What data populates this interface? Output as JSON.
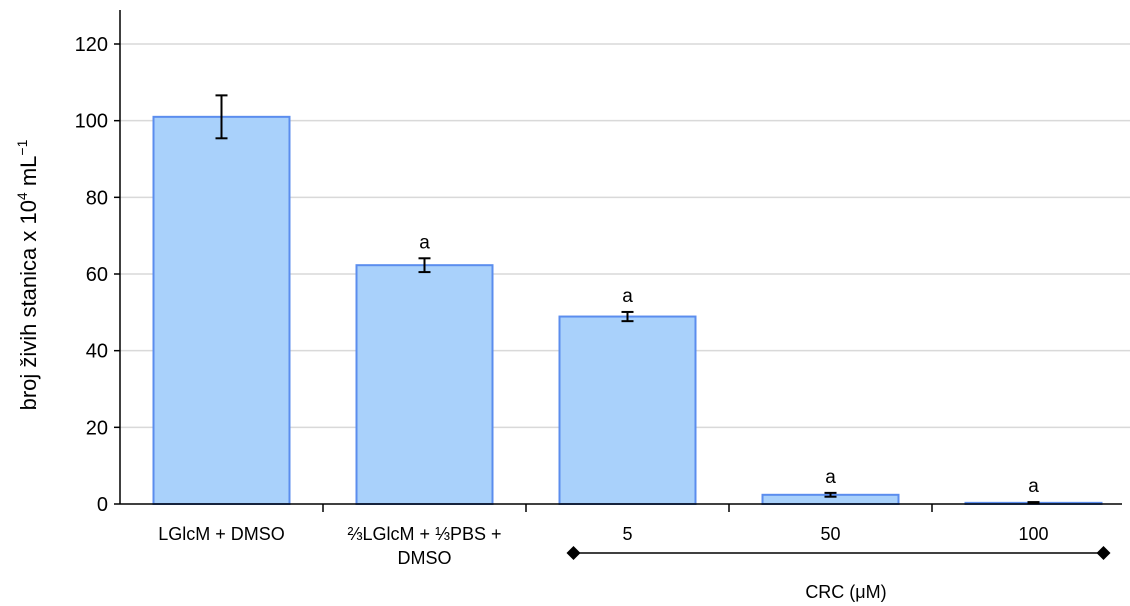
{
  "chart_data": {
    "type": "bar",
    "categories": [
      [
        "LGlcM + DMSO"
      ],
      [
        "⅔LGlcM + ⅓PBS +",
        "DMSO"
      ],
      [
        "5"
      ],
      [
        "50"
      ],
      [
        "100"
      ]
    ],
    "values": [
      101,
      62.3,
      48.9,
      2.4,
      0.3
    ],
    "errors": [
      5.6,
      1.8,
      1.2,
      0.5,
      0.2
    ],
    "significance": [
      "",
      "a",
      "a",
      "a",
      "a"
    ],
    "ylabel": "broj živih stanica x 10",
    "ylabel_exp": "4",
    "ylabel_unit": " mL",
    "ylabel_unit_exp": "−1",
    "ylim": [
      0,
      120
    ],
    "yticks": [
      0,
      20,
      40,
      60,
      80,
      100,
      120
    ],
    "grid": true,
    "group_label": "CRC (μM)",
    "colors": {
      "bar_fill": "#a9d1fb",
      "bar_stroke": "#5b8dee",
      "grid": "#d9d9d9",
      "axis": "#000000"
    }
  }
}
